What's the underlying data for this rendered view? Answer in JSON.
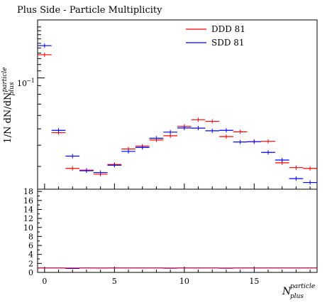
{
  "chart_data": {
    "type": "line",
    "title": "Plus Side - Particle Multiplicity",
    "ylabel": {
      "prefix": "1/N dN/dN",
      "sup": "particle",
      "sub": "plus"
    },
    "xlabel": {
      "base": "N",
      "sup": "particle",
      "sub": "plus"
    },
    "x_ticks": [
      "0",
      "5",
      "10",
      "15"
    ],
    "y_tick_major_label": "10",
    "y_tick_major_exp": "−1",
    "ratio_ticks": [
      "0",
      "2",
      "4",
      "6",
      "8",
      "10",
      "12",
      "14",
      "16",
      "18"
    ],
    "bins": [
      0,
      1,
      2,
      3,
      4,
      5,
      6,
      7,
      8,
      9,
      10,
      11,
      12,
      13,
      14,
      15,
      16,
      17,
      18,
      19
    ],
    "series": [
      {
        "name": "DDD 81",
        "color": "#ff0000",
        "values": [
          0.137,
          0.0475,
          0.0292,
          0.0285,
          0.027,
          0.0308,
          0.038,
          0.0395,
          0.043,
          0.0455,
          0.0517,
          0.0566,
          0.0554,
          0.045,
          0.048,
          0.042,
          0.0422,
          0.0315,
          0.0295,
          0.0292
        ]
      },
      {
        "name": "SDD 81",
        "color": "#0000ff",
        "values": [
          0.155,
          0.049,
          0.0345,
          0.0283,
          0.0276,
          0.0305,
          0.0368,
          0.0388,
          0.044,
          0.0478,
          0.0506,
          0.0505,
          0.0487,
          0.049,
          0.0418,
          0.042,
          0.0363,
          0.0327,
          0.0254,
          0.0241
        ]
      }
    ],
    "ratio": {
      "ylim": [
        0,
        18.5
      ],
      "values": [
        1.0,
        1.0,
        0.88,
        1.0,
        0.98,
        1.0,
        1.0,
        1.0,
        1.0,
        0.95,
        1.0,
        1.0,
        1.0,
        0.95,
        1.0,
        1.0,
        1.0,
        1.0,
        1.0,
        1.0
      ]
    },
    "xlim": [
      -0.5,
      19.5
    ],
    "ylim_log": [
      0.022,
      0.22
    ],
    "log_y": true,
    "legend_position": "top-right"
  }
}
